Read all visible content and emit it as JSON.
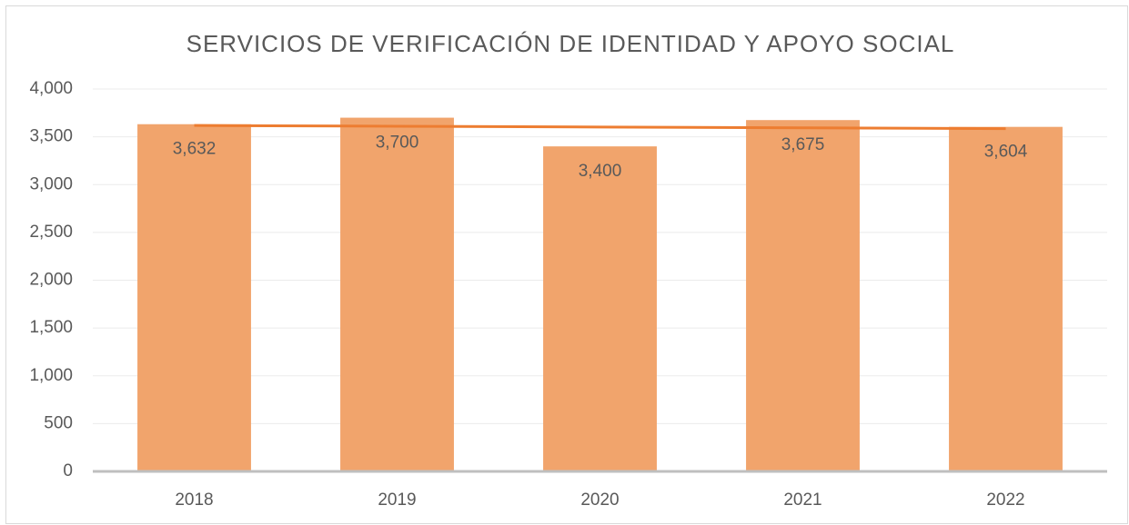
{
  "chart_data": {
    "type": "bar",
    "title": "SERVICIOS DE VERIFICACIÓN DE IDENTIDAD Y APOYO SOCIAL",
    "categories": [
      "2018",
      "2019",
      "2020",
      "2021",
      "2022"
    ],
    "values": [
      3632,
      3700,
      3400,
      3675,
      3604
    ],
    "value_labels": [
      "3,632",
      "3,700",
      "3,400",
      "3,675",
      "3,604"
    ],
    "color": "#f1a46c",
    "trendline": {
      "color": "#ed7d31",
      "values": [
        3618.4,
        3610.3,
        3602.2,
        3594.1,
        3586
      ]
    },
    "ylim": [
      0,
      4000
    ],
    "yticks": [
      0,
      500,
      {
        "value": 1000,
        "label": "1,000"
      },
      {
        "value": 1500,
        "label": "1,500"
      },
      {
        "value": 2000,
        "label": "2,000"
      },
      {
        "value": 2500,
        "label": "2,500"
      },
      {
        "value": 3000,
        "label": "3,000"
      },
      {
        "value": 3500,
        "label": "3,500"
      },
      {
        "value": 4000,
        "label": "4,000"
      }
    ],
    "grid": true
  }
}
